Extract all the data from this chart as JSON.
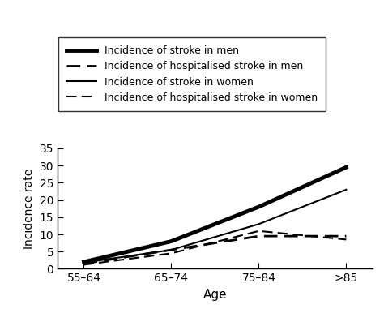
{
  "x_positions": [
    0,
    1,
    2,
    3
  ],
  "x_labels": [
    "55–64",
    "65–74",
    "75–84",
    ">85"
  ],
  "series": {
    "incidence_men": [
      2.0,
      8.0,
      18.0,
      29.5
    ],
    "hosp_men": [
      1.5,
      5.5,
      9.5,
      9.5
    ],
    "incidence_women": [
      1.8,
      5.5,
      13.0,
      23.0
    ],
    "hosp_women": [
      1.2,
      4.5,
      11.0,
      8.5
    ]
  },
  "line_styles": {
    "incidence_men": {
      "color": "#000000",
      "linewidth": 3.5,
      "linestyle": "solid"
    },
    "hosp_men": {
      "color": "#000000",
      "linewidth": 2.0,
      "linestyle": "dashed"
    },
    "incidence_women": {
      "color": "#000000",
      "linewidth": 1.5,
      "linestyle": "solid"
    },
    "hosp_women": {
      "color": "#000000",
      "linewidth": 1.5,
      "linestyle": "dashed"
    }
  },
  "legend": [
    {
      "label": "Incidence of stroke in men",
      "linewidth": 3.5,
      "linestyle": "solid"
    },
    {
      "label": "Incidence of hospitalised stroke in men",
      "linewidth": 2.0,
      "linestyle": "dashed"
    },
    {
      "label": "Incidence of stroke in women",
      "linewidth": 1.5,
      "linestyle": "solid"
    },
    {
      "label": "Incidence of hospitalised stroke in women",
      "linewidth": 1.5,
      "linestyle": "dashed"
    }
  ],
  "ylabel": "Incidence rate",
  "xlabel": "Age",
  "ylim": [
    0,
    35
  ],
  "yticks": [
    0,
    5,
    10,
    15,
    20,
    25,
    30,
    35
  ],
  "background_color": "#ffffff",
  "legend_box_color": "#ffffff",
  "legend_border_color": "#000000",
  "tick_color": "#000000",
  "font_color": "#000000",
  "font_size": 10,
  "legend_font_size": 9
}
